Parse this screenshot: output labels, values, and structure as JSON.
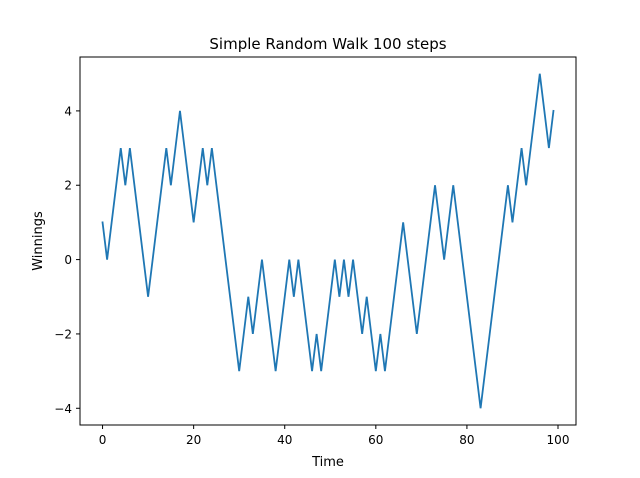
{
  "chart_data": {
    "type": "line",
    "title": "Simple Random Walk 100 steps",
    "xlabel": "Time",
    "ylabel": "Winnings",
    "xlim": [
      -4.95,
      103.95
    ],
    "ylim": [
      -4.45,
      5.45
    ],
    "grid": false,
    "x_ticks": [
      0,
      20,
      40,
      60,
      80,
      100
    ],
    "x_tick_labels": [
      "0",
      "20",
      "40",
      "60",
      "80",
      "100"
    ],
    "y_ticks": [
      -4,
      -2,
      0,
      2,
      4
    ],
    "y_tick_labels": [
      "−4",
      "−2",
      "0",
      "2",
      "4"
    ],
    "series": [
      {
        "color": "#1f77b4",
        "x": [
          0,
          1,
          2,
          3,
          4,
          5,
          6,
          7,
          8,
          9,
          10,
          11,
          12,
          13,
          14,
          15,
          16,
          17,
          18,
          19,
          20,
          21,
          22,
          23,
          24,
          25,
          26,
          27,
          28,
          29,
          30,
          31,
          32,
          33,
          34,
          35,
          36,
          37,
          38,
          39,
          40,
          41,
          42,
          43,
          44,
          45,
          46,
          47,
          48,
          49,
          50,
          51,
          52,
          53,
          54,
          55,
          56,
          57,
          58,
          59,
          60,
          61,
          62,
          63,
          64,
          65,
          66,
          67,
          68,
          69,
          70,
          71,
          72,
          73,
          74,
          75,
          76,
          77,
          78,
          79,
          80,
          81,
          82,
          83,
          84,
          85,
          86,
          87,
          88,
          89,
          90,
          91,
          92,
          93,
          94,
          95,
          96,
          97,
          98,
          99
        ],
        "values": [
          1,
          0,
          1,
          2,
          3,
          2,
          3,
          2,
          1,
          0,
          -1,
          0,
          1,
          2,
          3,
          2,
          3,
          4,
          3,
          2,
          1,
          2,
          3,
          2,
          3,
          2,
          1,
          0,
          -1,
          -2,
          -3,
          -2,
          -1,
          -2,
          -1,
          0,
          -1,
          -2,
          -3,
          -2,
          -1,
          0,
          -1,
          0,
          -1,
          -2,
          -3,
          -2,
          -3,
          -2,
          -1,
          0,
          -1,
          0,
          -1,
          0,
          -1,
          -2,
          -1,
          -2,
          -3,
          -2,
          -3,
          -2,
          -1,
          0,
          1,
          0,
          -1,
          -2,
          -1,
          0,
          1,
          2,
          1,
          0,
          1,
          2,
          1,
          0,
          -1,
          -2,
          -3,
          -4,
          -3,
          -2,
          -1,
          0,
          1,
          2,
          1,
          2,
          3,
          2,
          3,
          4,
          5,
          4,
          3,
          4
        ]
      }
    ]
  }
}
